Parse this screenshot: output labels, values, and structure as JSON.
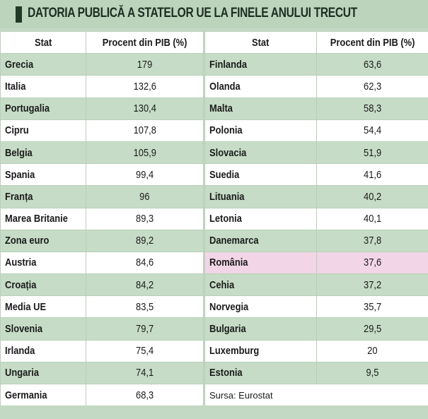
{
  "title": "DATORIA PUBLICĂ A STATELOR UE LA FINELE ANULUI TRECUT",
  "source": "Sursa: Eurostat",
  "colors": {
    "header_bar": "#bcd4bc",
    "row_green": "#c6dcc6",
    "row_white": "#ffffff",
    "highlight": "#f2d6e7"
  },
  "chart_data": {
    "type": "table",
    "columns": [
      "Stat",
      "Procent din PIB (%)"
    ],
    "highlighted_row": "România",
    "left": [
      {
        "stat": "Grecia",
        "value": "179"
      },
      {
        "stat": "Italia",
        "value": "132,6"
      },
      {
        "stat": "Portugalia",
        "value": "130,4"
      },
      {
        "stat": "Cipru",
        "value": "107,8"
      },
      {
        "stat": "Belgia",
        "value": "105,9"
      },
      {
        "stat": "Spania",
        "value": "99,4"
      },
      {
        "stat": "Franța",
        "value": "96"
      },
      {
        "stat": "Marea Britanie",
        "value": "89,3"
      },
      {
        "stat": "Zona euro",
        "value": "89,2"
      },
      {
        "stat": "Austria",
        "value": "84,6"
      },
      {
        "stat": "Croația",
        "value": "84,2"
      },
      {
        "stat": "Media UE",
        "value": "83,5"
      },
      {
        "stat": "Slovenia",
        "value": "79,7"
      },
      {
        "stat": "Irlanda",
        "value": "75,4"
      },
      {
        "stat": "Ungaria",
        "value": "74,1"
      },
      {
        "stat": "Germania",
        "value": "68,3"
      }
    ],
    "right": [
      {
        "stat": "Finlanda",
        "value": "63,6"
      },
      {
        "stat": "Olanda",
        "value": "62,3"
      },
      {
        "stat": "Malta",
        "value": "58,3"
      },
      {
        "stat": "Polonia",
        "value": "54,4"
      },
      {
        "stat": "Slovacia",
        "value": "51,9"
      },
      {
        "stat": "Suedia",
        "value": "41,6"
      },
      {
        "stat": "Lituania",
        "value": "40,2"
      },
      {
        "stat": "Letonia",
        "value": "40,1"
      },
      {
        "stat": "Danemarca",
        "value": "37,8"
      },
      {
        "stat": "România",
        "value": "37,6"
      },
      {
        "stat": "Cehia",
        "value": "37,2"
      },
      {
        "stat": "Norvegia",
        "value": "35,7"
      },
      {
        "stat": "Bulgaria",
        "value": "29,5"
      },
      {
        "stat": "Luxemburg",
        "value": "20"
      },
      {
        "stat": "Estonia",
        "value": "9,5"
      }
    ]
  }
}
